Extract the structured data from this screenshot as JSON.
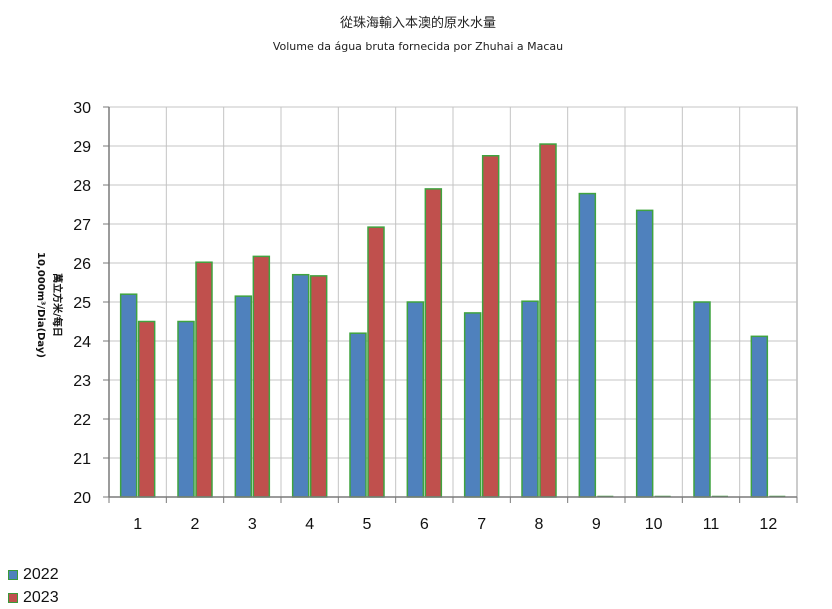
{
  "chart_data": {
    "type": "bar",
    "title": "從珠海輸入本澳的原水水量",
    "subtitle": "Volume da água bruta fornecida por Zhuhai a Macau",
    "ylabel_line1": "萬立方米/每日",
    "ylabel_line2": "10,000m³/Dia(Day)",
    "xlabel": "",
    "ylim": [
      20,
      30
    ],
    "yticks": [
      20,
      21,
      22,
      23,
      24,
      25,
      26,
      27,
      28,
      29,
      30
    ],
    "grid": true,
    "legend_position": "bottom-left",
    "categories": [
      "1",
      "2",
      "3",
      "4",
      "5",
      "6",
      "7",
      "8",
      "9",
      "10",
      "11",
      "12"
    ],
    "series": [
      {
        "name": "2022",
        "color": "#4f81bd",
        "values": [
          25.2,
          24.5,
          25.15,
          25.7,
          24.2,
          25.0,
          24.72,
          25.02,
          27.78,
          27.35,
          25.0,
          24.12
        ]
      },
      {
        "name": "2023",
        "color": "#c0504d",
        "values": [
          24.5,
          26.02,
          26.17,
          25.67,
          26.92,
          27.9,
          28.75,
          29.05,
          null,
          null,
          null,
          null
        ]
      }
    ]
  }
}
